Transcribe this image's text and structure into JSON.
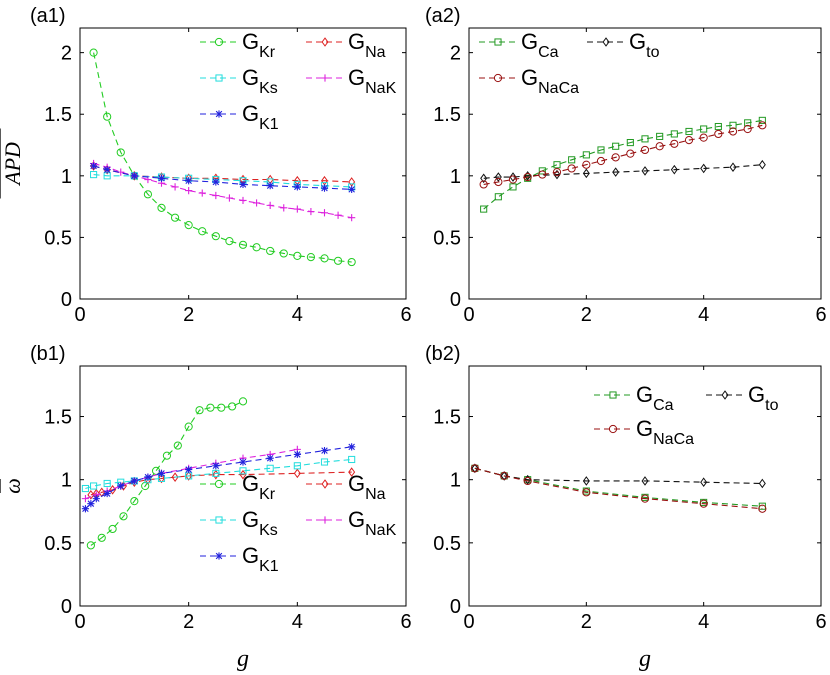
{
  "chart_data": [
    {
      "id": "a1",
      "type": "line",
      "panel_label": "(a1)",
      "ylabel": "APD",
      "xlabel": "",
      "xlim": [
        0,
        6
      ],
      "ylim": [
        0,
        2.2
      ],
      "xticks": [
        "0",
        "2",
        "4",
        "6"
      ],
      "yticks": [
        "0",
        "0.5",
        "1",
        "1.5",
        "2"
      ],
      "legend_cols": 2,
      "legend_position": "top-right",
      "series": [
        {
          "name": "G",
          "sub": "Kr",
          "color": "#22cc22",
          "marker": "circle",
          "x": [
            0.25,
            0.5,
            0.75,
            1,
            1.25,
            1.5,
            1.75,
            2,
            2.25,
            2.5,
            2.75,
            3,
            3.25,
            3.5,
            3.75,
            4,
            4.25,
            4.5,
            4.75,
            5
          ],
          "y": [
            2.0,
            1.48,
            1.19,
            1.0,
            0.85,
            0.74,
            0.66,
            0.6,
            0.55,
            0.51,
            0.47,
            0.44,
            0.42,
            0.39,
            0.37,
            0.35,
            0.34,
            0.33,
            0.31,
            0.3
          ]
        },
        {
          "name": "G",
          "sub": "Na",
          "color": "#dd2222",
          "marker": "diamond",
          "x": [
            0.25,
            0.5,
            1,
            1.5,
            2,
            2.5,
            3,
            3.5,
            4,
            4.5,
            5
          ],
          "y": [
            1.08,
            1.05,
            1.0,
            0.99,
            0.98,
            0.98,
            0.97,
            0.97,
            0.96,
            0.96,
            0.95
          ]
        },
        {
          "name": "G",
          "sub": "Ks",
          "color": "#22dddd",
          "marker": "square",
          "x": [
            0.25,
            0.5,
            1,
            1.5,
            2,
            2.5,
            3,
            3.5,
            4,
            4.5,
            5
          ],
          "y": [
            1.01,
            1.0,
            1.0,
            0.99,
            0.98,
            0.97,
            0.96,
            0.95,
            0.93,
            0.92,
            0.91
          ]
        },
        {
          "name": "G",
          "sub": "NaK",
          "color": "#dd22dd",
          "marker": "plus",
          "x": [
            0.25,
            0.5,
            0.75,
            1,
            1.25,
            1.5,
            1.75,
            2,
            2.25,
            2.5,
            2.75,
            3,
            3.25,
            3.5,
            3.75,
            4,
            4.25,
            4.5,
            4.75,
            5
          ],
          "y": [
            1.1,
            1.07,
            1.03,
            1.0,
            0.97,
            0.94,
            0.91,
            0.88,
            0.86,
            0.84,
            0.82,
            0.8,
            0.78,
            0.76,
            0.74,
            0.73,
            0.71,
            0.7,
            0.68,
            0.66
          ]
        },
        {
          "name": "G",
          "sub": "K1",
          "color": "#2222dd",
          "marker": "star",
          "x": [
            0.25,
            0.5,
            1,
            1.5,
            2,
            2.5,
            3,
            3.5,
            4,
            4.5,
            5
          ],
          "y": [
            1.08,
            1.05,
            1.0,
            0.98,
            0.96,
            0.95,
            0.93,
            0.92,
            0.91,
            0.9,
            0.89
          ]
        }
      ]
    },
    {
      "id": "a2",
      "type": "line",
      "panel_label": "(a2)",
      "ylabel": "",
      "xlabel": "",
      "xlim": [
        0,
        6
      ],
      "ylim": [
        0,
        2.2
      ],
      "xticks": [
        "0",
        "2",
        "4",
        "6"
      ],
      "yticks": [
        "0",
        "0.5",
        "1",
        "1.5",
        "2"
      ],
      "legend_cols": 2,
      "legend_position": "top-left",
      "series": [
        {
          "name": "G",
          "sub": "Ca",
          "color": "#229922",
          "marker": "square",
          "x": [
            0.25,
            0.5,
            0.75,
            1,
            1.25,
            1.5,
            1.75,
            2,
            2.25,
            2.5,
            2.75,
            3,
            3.25,
            3.5,
            3.75,
            4,
            4.25,
            4.5,
            4.75,
            5
          ],
          "y": [
            0.73,
            0.83,
            0.91,
            0.98,
            1.04,
            1.09,
            1.13,
            1.17,
            1.21,
            1.24,
            1.27,
            1.3,
            1.32,
            1.34,
            1.36,
            1.38,
            1.4,
            1.41,
            1.43,
            1.45
          ]
        },
        {
          "name": "G",
          "sub": "to",
          "color": "#111111",
          "marker": "diamond",
          "x": [
            0.25,
            0.5,
            0.75,
            1,
            1.5,
            2,
            2.5,
            3,
            3.5,
            4,
            4.5,
            5
          ],
          "y": [
            0.98,
            0.99,
            0.99,
            1.0,
            1.01,
            1.02,
            1.03,
            1.04,
            1.05,
            1.06,
            1.07,
            1.09
          ]
        },
        {
          "name": "G",
          "sub": "NaCa",
          "color": "#991111",
          "marker": "circle",
          "x": [
            0.25,
            0.5,
            0.75,
            1,
            1.25,
            1.5,
            1.75,
            2,
            2.25,
            2.5,
            2.75,
            3,
            3.25,
            3.5,
            3.75,
            4,
            4.25,
            4.5,
            4.75,
            5
          ],
          "y": [
            0.93,
            0.95,
            0.97,
            0.99,
            1.01,
            1.03,
            1.06,
            1.09,
            1.12,
            1.15,
            1.18,
            1.21,
            1.24,
            1.26,
            1.29,
            1.31,
            1.34,
            1.36,
            1.38,
            1.41
          ]
        }
      ]
    },
    {
      "id": "b1",
      "type": "line",
      "panel_label": "(b1)",
      "ylabel": "ω",
      "xlabel": "g",
      "xlim": [
        0,
        6
      ],
      "ylim": [
        0,
        1.9
      ],
      "xticks": [
        "0",
        "2",
        "4",
        "6"
      ],
      "yticks": [
        "0",
        "0.5",
        "1",
        "1.5"
      ],
      "legend_cols": 2,
      "legend_position": "bottom-right",
      "series": [
        {
          "name": "G",
          "sub": "Kr",
          "color": "#22cc22",
          "marker": "circle",
          "x": [
            0.2,
            0.4,
            0.6,
            0.8,
            1,
            1.2,
            1.4,
            1.6,
            1.8,
            2,
            2.2,
            2.4,
            2.6,
            2.8,
            3
          ],
          "y": [
            0.48,
            0.54,
            0.61,
            0.71,
            0.83,
            0.95,
            1.07,
            1.19,
            1.27,
            1.42,
            1.55,
            1.57,
            1.57,
            1.58,
            1.62
          ]
        },
        {
          "name": "G",
          "sub": "Na",
          "color": "#dd2222",
          "marker": "diamond",
          "x": [
            0.2,
            0.3,
            0.4,
            0.6,
            0.8,
            1,
            1.25,
            1.5,
            1.75,
            2,
            2.5,
            3,
            4,
            5
          ],
          "y": [
            0.88,
            0.89,
            0.9,
            0.92,
            0.95,
            0.98,
            1.0,
            1.01,
            1.02,
            1.03,
            1.04,
            1.04,
            1.05,
            1.06
          ]
        },
        {
          "name": "G",
          "sub": "Ks",
          "color": "#22dddd",
          "marker": "square",
          "x": [
            0.1,
            0.25,
            0.5,
            0.75,
            1,
            1.25,
            1.5,
            2,
            2.5,
            3,
            3.5,
            4,
            4.5,
            5
          ],
          "y": [
            0.93,
            0.95,
            0.97,
            0.98,
            0.99,
            1.0,
            1.01,
            1.03,
            1.05,
            1.07,
            1.09,
            1.11,
            1.14,
            1.16
          ]
        },
        {
          "name": "G",
          "sub": "NaK",
          "color": "#dd22dd",
          "marker": "plus",
          "x": [
            0.1,
            0.3,
            0.5,
            0.75,
            1,
            1.25,
            1.5,
            2,
            2.5,
            3,
            3.5,
            4
          ],
          "y": [
            0.85,
            0.88,
            0.91,
            0.95,
            0.99,
            1.02,
            1.05,
            1.09,
            1.13,
            1.17,
            1.2,
            1.24
          ]
        },
        {
          "name": "G",
          "sub": "K1",
          "color": "#2222dd",
          "marker": "star",
          "x": [
            0.1,
            0.2,
            0.3,
            0.5,
            0.75,
            1,
            1.25,
            1.5,
            2,
            2.5,
            3,
            3.5,
            4,
            4.5,
            5
          ],
          "y": [
            0.77,
            0.81,
            0.85,
            0.89,
            0.95,
            0.99,
            1.02,
            1.05,
            1.08,
            1.11,
            1.14,
            1.17,
            1.2,
            1.23,
            1.26
          ]
        }
      ]
    },
    {
      "id": "b2",
      "type": "line",
      "panel_label": "(b2)",
      "ylabel": "",
      "xlabel": "g",
      "xlim": [
        0,
        6
      ],
      "ylim": [
        0,
        1.9
      ],
      "xticks": [
        "0",
        "2",
        "4",
        "6"
      ],
      "yticks": [
        "0",
        "0.5",
        "1",
        "1.5"
      ],
      "legend_cols": 2,
      "legend_position": "top-right",
      "series": [
        {
          "name": "G",
          "sub": "Ca",
          "color": "#229922",
          "marker": "square",
          "x": [
            0.1,
            0.6,
            1,
            2,
            3,
            4,
            5
          ],
          "y": [
            1.09,
            1.03,
            1.0,
            0.91,
            0.86,
            0.82,
            0.79
          ]
        },
        {
          "name": "G",
          "sub": "to",
          "color": "#111111",
          "marker": "diamond",
          "x": [
            0.1,
            0.6,
            1,
            2,
            3,
            4,
            5
          ],
          "y": [
            1.09,
            1.03,
            1.0,
            0.99,
            0.99,
            0.98,
            0.97
          ]
        },
        {
          "name": "G",
          "sub": "NaCa",
          "color": "#991111",
          "marker": "circle",
          "x": [
            0.1,
            0.6,
            1,
            2,
            3,
            4,
            5
          ],
          "y": [
            1.09,
            1.03,
            0.99,
            0.9,
            0.85,
            0.81,
            0.77
          ]
        }
      ]
    }
  ]
}
